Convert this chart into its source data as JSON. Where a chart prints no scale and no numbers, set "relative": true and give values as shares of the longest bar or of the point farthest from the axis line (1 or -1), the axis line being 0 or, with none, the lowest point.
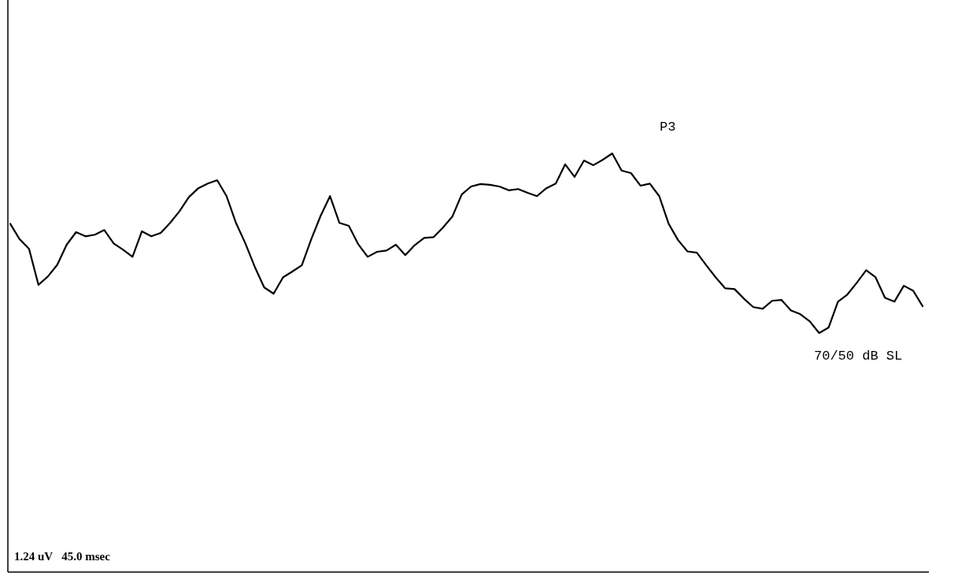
{
  "chart_data": {
    "type": "line",
    "relative": true,
    "categories": [
      null,
      null,
      null,
      null,
      null,
      null,
      null,
      null,
      null,
      null,
      null,
      null,
      null,
      null,
      null,
      null,
      null,
      null,
      null,
      null,
      null,
      null,
      null,
      null,
      null,
      null,
      null,
      null,
      null,
      null,
      null,
      null,
      null,
      null,
      null,
      null,
      null,
      null,
      null,
      null,
      null,
      null,
      null,
      null,
      null,
      null,
      null,
      null,
      null,
      null,
      null,
      null,
      null,
      null,
      null,
      null,
      null,
      null,
      null,
      null,
      null,
      null,
      null,
      null,
      null,
      null,
      null,
      null,
      null,
      null,
      null,
      null,
      null,
      null,
      null,
      null,
      null,
      null,
      null,
      null,
      null,
      null,
      null,
      null,
      null,
      null,
      null,
      null,
      null,
      null,
      null,
      null,
      null,
      null,
      null,
      null,
      null,
      null
    ],
    "series": [
      {
        "color": "#000000",
        "values": [
          0.832,
          0.795,
          0.772,
          0.686,
          0.706,
          0.734,
          0.782,
          0.812,
          0.802,
          0.806,
          0.817,
          0.785,
          0.77,
          0.753,
          0.814,
          0.802,
          0.81,
          0.834,
          0.862,
          0.896,
          0.917,
          0.928,
          0.936,
          0.898,
          0.834,
          0.785,
          0.729,
          0.68,
          0.665,
          0.704,
          0.718,
          0.733,
          0.795,
          0.851,
          0.898,
          0.834,
          0.827,
          0.783,
          0.753,
          0.765,
          0.768,
          0.782,
          0.757,
          0.781,
          0.798,
          0.8,
          0.823,
          0.849,
          0.902,
          0.921,
          0.927,
          0.925,
          0.921,
          0.912,
          0.915,
          0.906,
          0.898,
          0.917,
          0.928,
          0.974,
          0.944,
          0.983,
          0.972,
          0.985,
          1,
          0.959,
          0.953,
          0.923,
          0.928,
          0.898,
          0.832,
          0.793,
          0.766,
          0.763,
          0.733,
          0.704,
          0.678,
          0.676,
          0.653,
          0.633,
          0.629,
          0.648,
          0.65,
          0.625,
          0.616,
          0.599,
          0.571,
          0.584,
          0.646,
          0.663,
          0.691,
          0.721,
          0.704,
          0.655,
          0.646,
          0.684,
          0.672,
          0.635
        ]
      }
    ],
    "annotations": [
      "P3",
      "70/50 dB SL",
      "1.24 uV   45.0 msec"
    ]
  }
}
